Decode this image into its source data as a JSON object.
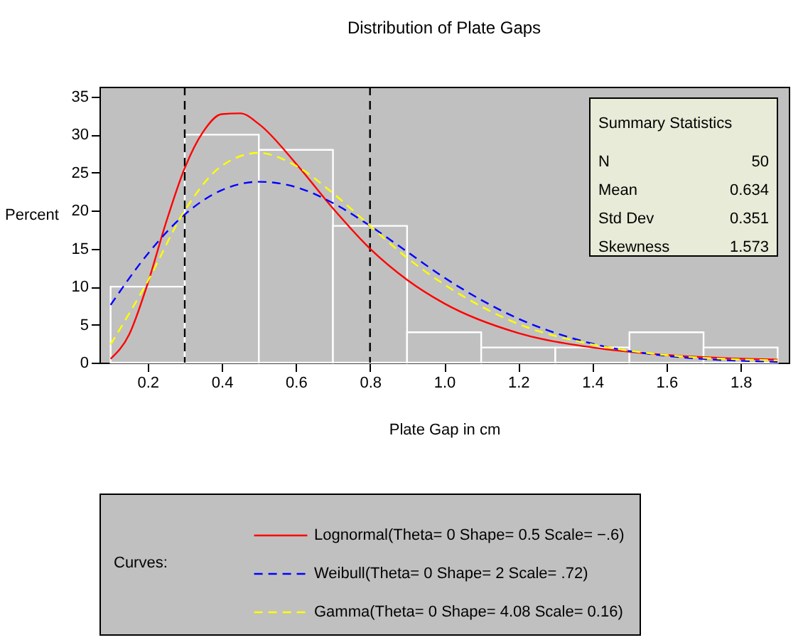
{
  "chart_data": {
    "type": "histogram",
    "title": "Distribution of Plate Gaps",
    "xlabel": "Plate Gap in cm",
    "ylabel": "Percent",
    "legend_title": "Curves:",
    "bins": [
      0.1,
      0.3,
      0.5,
      0.7,
      0.9,
      1.1,
      1.3,
      1.5,
      1.7,
      1.9
    ],
    "values": [
      10,
      30,
      28,
      18,
      4,
      2,
      2,
      4,
      2
    ],
    "color": "#c0c0c0",
    "xlim": [
      0.07,
      1.93
    ],
    "ylim": [
      0,
      36.3
    ],
    "xticks": [
      0.2,
      0.4,
      0.6,
      0.8,
      {
        "value": 1,
        "label": "1.0"
      },
      1.2,
      1.4,
      1.6,
      1.8
    ],
    "yticks": [
      0,
      5,
      10,
      15,
      20,
      25,
      30,
      35
    ],
    "series": [
      {
        "name": "Lognormal(Theta= 0 Shape= 0.5 Scale= −.6)",
        "type": "line",
        "color": "#ff0000",
        "line_style": "solid",
        "x": [
          0.1,
          0.15,
          0.2,
          0.25,
          0.3,
          0.35,
          0.4,
          0.45,
          0.5,
          0.6,
          0.7,
          0.8,
          0.9,
          1.0,
          1.2,
          1.4,
          1.6,
          1.9
        ],
        "values": [
          0.5,
          3.7,
          10.4,
          18.5,
          25.6,
          30.4,
          32.7,
          32.8,
          31.4,
          26.2,
          20.3,
          15.0,
          10.9,
          7.8,
          3.9,
          2.0,
          1.0,
          0.4
        ]
      },
      {
        "name": "Weibull(Theta= 0 Shape= 2 Scale= .72)",
        "type": "line",
        "color": "#0000ff",
        "line_style": "dashed",
        "x": [
          0.1,
          0.2,
          0.3,
          0.4,
          0.5,
          0.6,
          0.7,
          0.8,
          0.9,
          1.0,
          1.2,
          1.4,
          1.6,
          1.9
        ],
        "values": [
          7.6,
          14.3,
          19.5,
          22.7,
          23.8,
          23.1,
          21.0,
          18.0,
          14.6,
          11.2,
          5.8,
          2.5,
          0.9,
          0.1
        ]
      },
      {
        "name": "Gamma(Theta= 0 Shape= 4.08 Scale= 0.16)",
        "type": "line",
        "color": "#ffff00",
        "line_style": "dashed",
        "x": [
          0.1,
          0.2,
          0.3,
          0.4,
          0.5,
          0.6,
          0.7,
          0.8,
          0.9,
          1.0,
          1.2,
          1.4,
          1.6,
          1.9
        ],
        "values": [
          2.4,
          10.7,
          20.0,
          25.9,
          27.6,
          25.9,
          22.3,
          18.0,
          13.8,
          10.3,
          5.1,
          2.4,
          1.0,
          0.3
        ]
      }
    ],
    "ref_lines": [
      {
        "axis": "x",
        "value": 0.3,
        "color": "#000000",
        "line_style": "dashed"
      },
      {
        "axis": "x",
        "value": 0.8,
        "color": "#000000",
        "line_style": "dashed"
      }
    ],
    "annotations": [
      "Summary Statistics",
      "N",
      "50",
      "Mean",
      "0.634",
      "Std Dev",
      "0.351",
      "Skewness",
      "1.573"
    ],
    "legend": "bottom",
    "grid": false
  }
}
